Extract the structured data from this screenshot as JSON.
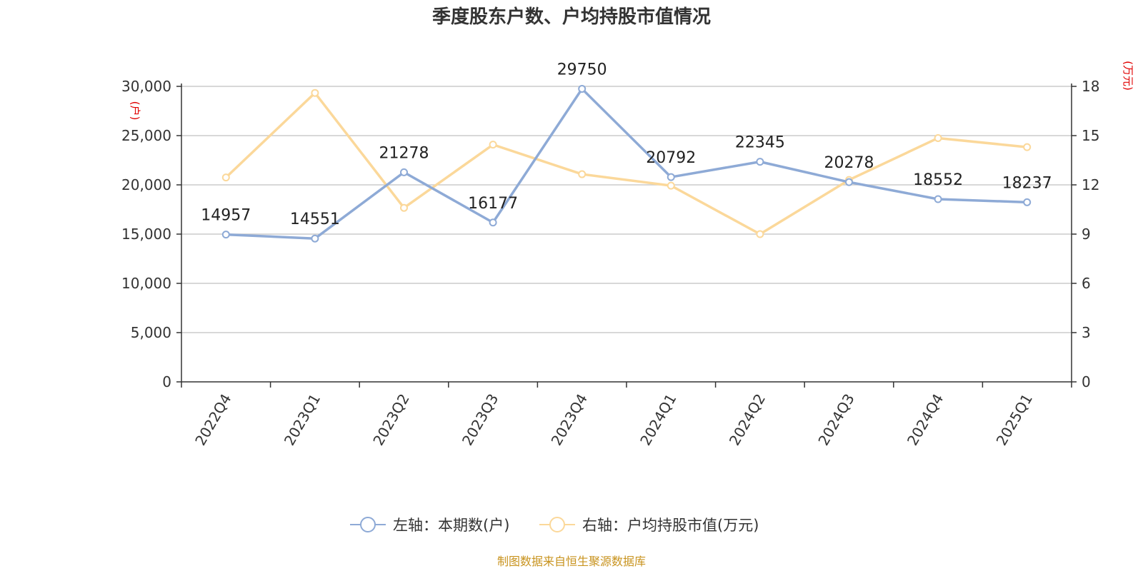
{
  "chart_data": {
    "type": "line",
    "title": "季度股东户数、户均持股市值情况",
    "categories": [
      "2022Q4",
      "2023Q1",
      "2023Q2",
      "2023Q3",
      "2023Q4",
      "2024Q1",
      "2024Q2",
      "2024Q3",
      "2024Q4",
      "2025Q1"
    ],
    "left_axis": {
      "unit": "(户)",
      "min": 0,
      "max": 30000,
      "ticks": [
        "0",
        "5,000",
        "10,000",
        "15,000",
        "20,000",
        "25,000",
        "30,000"
      ]
    },
    "right_axis": {
      "unit": "(万元)",
      "min": 0,
      "max": 18,
      "ticks": [
        "0",
        "3",
        "6",
        "9",
        "12",
        "15",
        "18"
      ]
    },
    "series": [
      {
        "name": "左轴：本期数(户)",
        "axis": "left",
        "color": "#8eaad6",
        "values": [
          14957,
          14551,
          21278,
          16177,
          29750,
          20792,
          22345,
          20278,
          18552,
          18237
        ],
        "labels": [
          "14957",
          "14551",
          "21278",
          "16177",
          "29750",
          "20792",
          "22345",
          "20278",
          "18552",
          "18237"
        ]
      },
      {
        "name": "右轴：户均持股市值(万元)",
        "axis": "right",
        "color": "#fbd89a",
        "values": [
          12.45,
          17.6,
          10.6,
          14.45,
          12.65,
          11.95,
          9.0,
          12.3,
          14.85,
          14.3
        ]
      }
    ],
    "grid": true,
    "legend_position": "bottom",
    "source": "制图数据来自恒生聚源数据库"
  }
}
